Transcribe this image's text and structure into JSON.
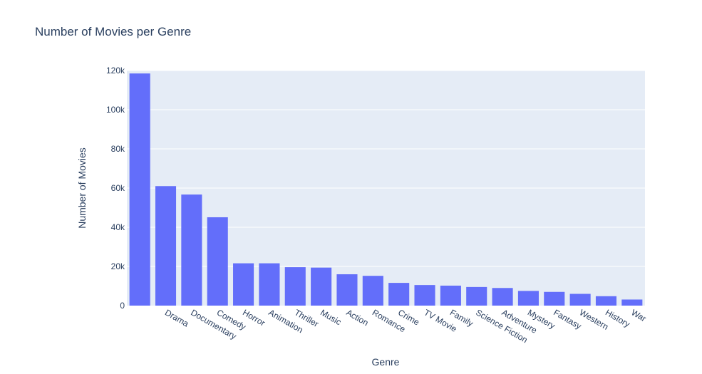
{
  "chart_data": {
    "type": "bar",
    "title": "Number of Movies per Genre",
    "xlabel": "Genre",
    "ylabel": "Number of Movies",
    "ylim": [
      0,
      120000
    ],
    "yticks": [
      0,
      20000,
      40000,
      60000,
      80000,
      100000,
      120000
    ],
    "ytick_labels": [
      "0",
      "20k",
      "40k",
      "60k",
      "80k",
      "100k",
      "120k"
    ],
    "grid": true,
    "categories": [
      "",
      "Drama",
      "Documentary",
      "Comedy",
      "Horror",
      "Animation",
      "Thriller",
      "Music",
      "Action",
      "Romance",
      "Crime",
      "TV Movie",
      "Family",
      "Science Fiction",
      "Adventure",
      "Mystery",
      "Fantasy",
      "Western",
      "History",
      "War"
    ],
    "values": [
      118500,
      61000,
      56700,
      45100,
      21600,
      21600,
      19600,
      19400,
      16000,
      15200,
      11600,
      10500,
      10200,
      9500,
      9000,
      7500,
      7000,
      6000,
      4800,
      3100
    ],
    "colors": {
      "bar": "#636efa",
      "plot_bg": "#e5ecf6",
      "grid": "#ffffff",
      "text": "#2a3f5f"
    }
  }
}
